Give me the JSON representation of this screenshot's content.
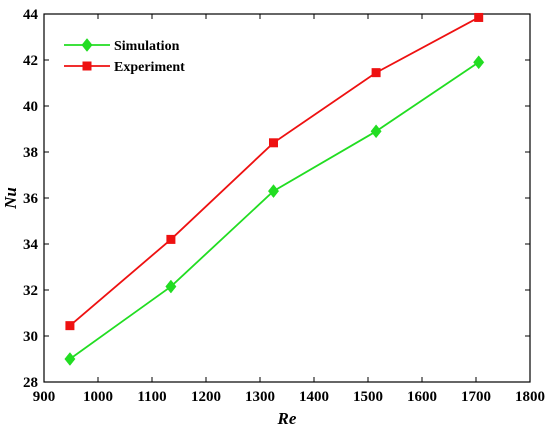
{
  "chart_data": {
    "type": "line",
    "xlabel": "Re",
    "ylabel": "Nu",
    "xlim": [
      900,
      1800
    ],
    "ylim": [
      28,
      44
    ],
    "xticks": [
      900,
      1000,
      1100,
      1200,
      1300,
      1400,
      1500,
      1600,
      1700,
      1800
    ],
    "yticks": [
      28,
      30,
      32,
      34,
      36,
      38,
      40,
      42,
      44
    ],
    "grid": false,
    "legend_position": "top-left",
    "series": [
      {
        "name": "Simulation",
        "color": "#22dd22",
        "marker": "diamond",
        "x": [
          948,
          1135,
          1325,
          1515,
          1705
        ],
        "y": [
          29.0,
          32.15,
          36.3,
          38.9,
          41.9
        ]
      },
      {
        "name": "Experiment",
        "color": "#ee1111",
        "marker": "square",
        "x": [
          948,
          1135,
          1325,
          1515,
          1705
        ],
        "y": [
          30.45,
          34.2,
          38.4,
          41.45,
          43.85
        ]
      }
    ]
  }
}
